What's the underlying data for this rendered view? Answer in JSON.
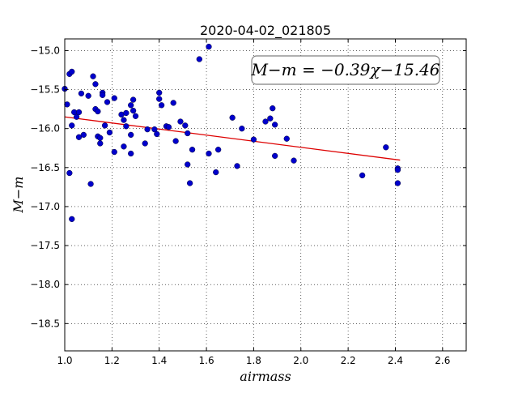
{
  "chart_data": {
    "type": "scatter",
    "title": "2020-04-02_021805",
    "xlabel": "airmass",
    "ylabel": "M−m",
    "xlim": [
      1.0,
      2.7
    ],
    "ylim": [
      -18.85,
      -14.85
    ],
    "grid": true,
    "xticks": [
      "1.0",
      "1.2",
      "1.4",
      "1.6",
      "1.8",
      "2.0",
      "2.2",
      "2.4",
      "2.6"
    ],
    "xtick_values": [
      1.0,
      1.2,
      1.4,
      1.6,
      1.8,
      2.0,
      2.2,
      2.4,
      2.6
    ],
    "yticks": [
      "−15.0",
      "−15.5",
      "−16.0",
      "−16.5",
      "−17.0",
      "−17.5",
      "−18.0",
      "−18.5"
    ],
    "ytick_values": [
      -15.0,
      -15.5,
      -16.0,
      -16.5,
      -17.0,
      -17.5,
      -18.0,
      -18.5
    ],
    "annotation": "M−m = −0.39χ−15.46",
    "colors": {
      "points": "#0000cc",
      "fit": "#dd0000",
      "frame": "#000000",
      "annotation_border": "#808080"
    },
    "points": [
      [
        1.0,
        -15.49
      ],
      [
        1.01,
        -15.69
      ],
      [
        1.02,
        -15.3
      ],
      [
        1.03,
        -15.27
      ],
      [
        1.02,
        -16.57
      ],
      [
        1.03,
        -17.16
      ],
      [
        1.03,
        -15.96
      ],
      [
        1.04,
        -15.79
      ],
      [
        1.05,
        -15.85
      ],
      [
        1.06,
        -15.79
      ],
      [
        1.06,
        -16.11
      ],
      [
        1.07,
        -15.55
      ],
      [
        1.08,
        -16.08
      ],
      [
        1.1,
        -15.58
      ],
      [
        1.11,
        -16.71
      ],
      [
        1.12,
        -15.33
      ],
      [
        1.13,
        -15.43
      ],
      [
        1.13,
        -15.75
      ],
      [
        1.14,
        -15.78
      ],
      [
        1.14,
        -16.1
      ],
      [
        1.15,
        -16.12
      ],
      [
        1.15,
        -16.19
      ],
      [
        1.16,
        -15.54
      ],
      [
        1.16,
        -15.57
      ],
      [
        1.17,
        -15.96
      ],
      [
        1.18,
        -15.66
      ],
      [
        1.19,
        -16.05
      ],
      [
        1.21,
        -16.3
      ],
      [
        1.21,
        -15.61
      ],
      [
        1.24,
        -15.82
      ],
      [
        1.25,
        -15.89
      ],
      [
        1.25,
        -16.23
      ],
      [
        1.26,
        -15.8
      ],
      [
        1.26,
        -15.97
      ],
      [
        1.28,
        -16.08
      ],
      [
        1.28,
        -16.32
      ],
      [
        1.28,
        -15.7
      ],
      [
        1.29,
        -15.63
      ],
      [
        1.29,
        -15.77
      ],
      [
        1.3,
        -15.84
      ],
      [
        1.34,
        -16.19
      ],
      [
        1.35,
        -16.01
      ],
      [
        1.38,
        -16.01
      ],
      [
        1.39,
        -16.07
      ],
      [
        1.4,
        -15.62
      ],
      [
        1.4,
        -15.54
      ],
      [
        1.41,
        -15.7
      ],
      [
        1.43,
        -15.97
      ],
      [
        1.44,
        -15.98
      ],
      [
        1.46,
        -15.67
      ],
      [
        1.47,
        -16.16
      ],
      [
        1.49,
        -15.91
      ],
      [
        1.51,
        -15.96
      ],
      [
        1.52,
        -16.46
      ],
      [
        1.52,
        -16.06
      ],
      [
        1.53,
        -16.7
      ],
      [
        1.54,
        -16.27
      ],
      [
        1.57,
        -15.11
      ],
      [
        1.61,
        -14.95
      ],
      [
        1.61,
        -16.32
      ],
      [
        1.64,
        -16.56
      ],
      [
        1.65,
        -16.27
      ],
      [
        1.71,
        -15.86
      ],
      [
        1.73,
        -16.48
      ],
      [
        1.75,
        -16.0
      ],
      [
        1.8,
        -16.14
      ],
      [
        1.85,
        -15.91
      ],
      [
        1.87,
        -15.87
      ],
      [
        1.88,
        -15.74
      ],
      [
        1.89,
        -16.35
      ],
      [
        1.89,
        -15.95
      ],
      [
        1.94,
        -16.13
      ],
      [
        1.97,
        -16.41
      ],
      [
        2.26,
        -16.6
      ],
      [
        2.36,
        -16.24
      ],
      [
        2.41,
        -16.51
      ],
      [
        2.41,
        -16.53
      ],
      [
        2.41,
        -16.7
      ]
    ],
    "fit": {
      "slope": -0.39,
      "intercept": -15.46,
      "x_range": [
        1.0,
        2.42
      ]
    }
  }
}
